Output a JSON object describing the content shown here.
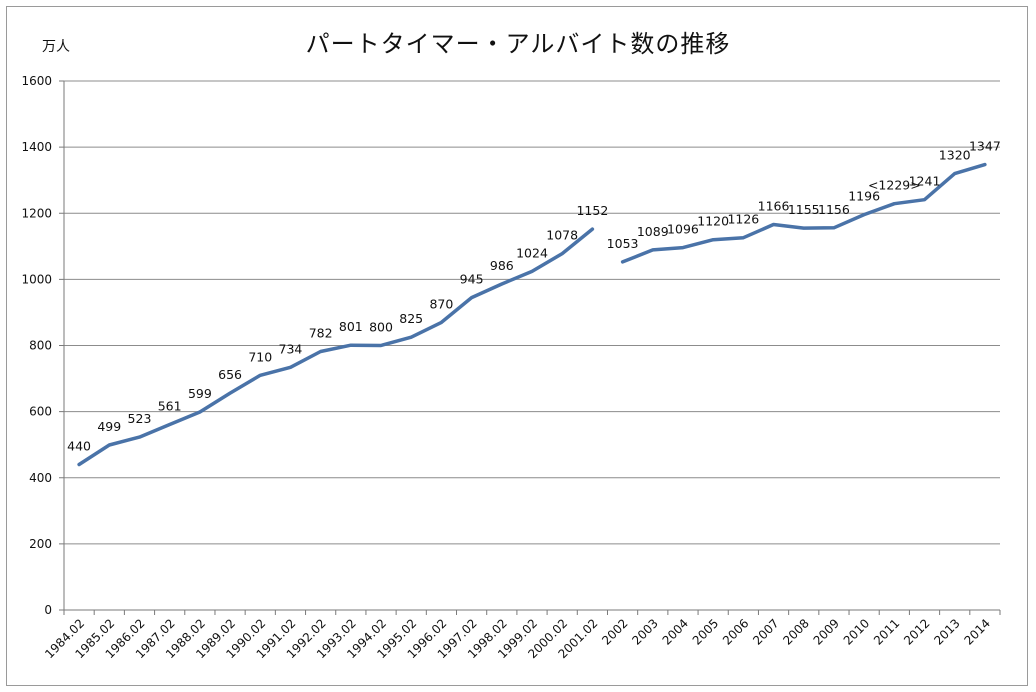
{
  "chart_data": {
    "type": "line",
    "title": "パートタイマー・アルバイト数の推移",
    "ylabel": "万人",
    "ylim": [
      0,
      1600
    ],
    "yticks": [
      0,
      200,
      400,
      600,
      800,
      1000,
      1200,
      1400,
      1600
    ],
    "grid": true,
    "categories": [
      "1984.02",
      "1985.02",
      "1986.02",
      "1987.02",
      "1988.02",
      "1989.02",
      "1990.02",
      "1991.02",
      "1992.02",
      "1993.02",
      "1994.02",
      "1995.02",
      "1996.02",
      "1997.02",
      "1998.02",
      "1999.02",
      "2000.02",
      "2001.02",
      "2002",
      "2003",
      "2004",
      "2005",
      "2006",
      "2007",
      "2008",
      "2009",
      "2010",
      "2011",
      "2012",
      "2013",
      "2014"
    ],
    "series": [
      {
        "color": "#4a73a8",
        "segments": [
          {
            "start": 0,
            "values": [
              440,
              499,
              523,
              561,
              599,
              656,
              710,
              734,
              782,
              801,
              800,
              825,
              870,
              945,
              986,
              1024,
              1078,
              1152
            ]
          },
          {
            "start": 18,
            "values": [
              1053,
              1089,
              1096,
              1120,
              1126,
              1166,
              1155,
              1156,
              1196,
              1229,
              1241,
              1320,
              1347
            ]
          }
        ]
      }
    ],
    "data_labels": [
      "440",
      "499",
      "523",
      "561",
      "599",
      "656",
      "710",
      "734",
      "782",
      "801",
      "800",
      "825",
      "870",
      "945",
      "986",
      "1024",
      "1078",
      "1152",
      "1053",
      "1089",
      "1096",
      "1120",
      "1126",
      "1166",
      "1155",
      "1156",
      "1196",
      "<1229>",
      "1241",
      "1320",
      "1347"
    ]
  }
}
